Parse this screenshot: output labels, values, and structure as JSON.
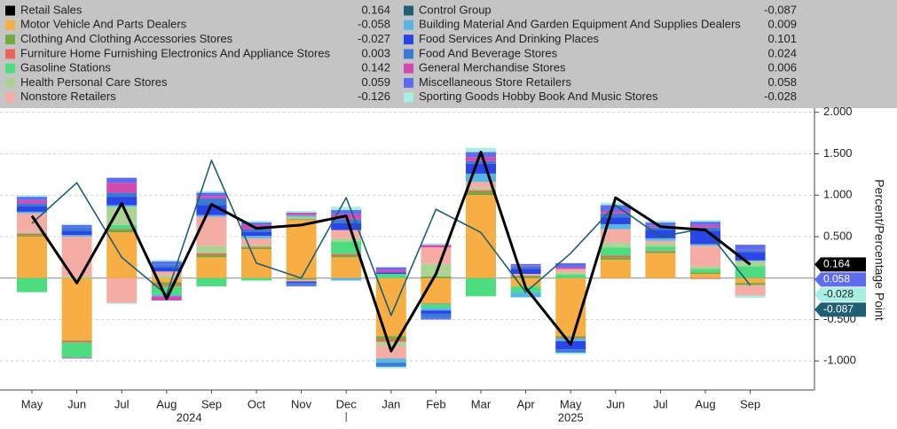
{
  "chart_data": {
    "type": "bar",
    "stacked": true,
    "y_axis_label": "Percent/Percentage Point",
    "categories": [
      "May",
      "Jun",
      "Jul",
      "Aug",
      "Sep",
      "Oct",
      "Nov",
      "Dec",
      "Jan",
      "Feb",
      "Mar",
      "Apr",
      "May",
      "Jun",
      "Jul",
      "Aug",
      "Sep"
    ],
    "x_groups": [
      {
        "label": "2024",
        "size": 8
      },
      {
        "label": "2025",
        "size": 9
      }
    ],
    "ylim": [
      -1.35,
      2.05
    ],
    "yticks": [
      {
        "value": -1,
        "label": "-1.000"
      },
      {
        "value": -0.5,
        "label": "-0.500"
      },
      {
        "value": 0.5,
        "label": "0.500"
      },
      {
        "value": 1,
        "label": "1.000"
      },
      {
        "value": 1.5,
        "label": "1.500"
      },
      {
        "value": 2,
        "label": "2.000"
      }
    ],
    "grid": true,
    "series": [
      {
        "name": "Retail Sales",
        "type": "line",
        "color": "#000000",
        "values": [
          0.75,
          -0.06,
          0.9,
          -0.25,
          0.89,
          0.6,
          0.64,
          0.75,
          -0.88,
          0.05,
          1.52,
          -0.12,
          -0.8,
          0.97,
          0.62,
          0.58,
          0.164
        ]
      },
      {
        "name": "Motor Vehicle And Parts Dealers",
        "type": "bar",
        "color": "#f7ae45",
        "values": [
          0.5,
          -0.75,
          0.55,
          -0.05,
          0.25,
          0.35,
          0.7,
          0.25,
          -0.7,
          -0.3,
          1.0,
          -0.1,
          -0.7,
          0.22,
          0.3,
          0.05,
          -0.058
        ]
      },
      {
        "name": "Clothing And Clothing Accessories Stores",
        "type": "bar",
        "color": "#76a83e",
        "values": [
          0.02,
          -0.01,
          0.03,
          -0.03,
          0.03,
          0.02,
          -0.02,
          0.02,
          -0.04,
          0.02,
          0.04,
          0.02,
          -0.02,
          0.03,
          0.02,
          0.02,
          -0.027
        ]
      },
      {
        "name": "Furniture Home Furnishing Electronics And Appliance Stores",
        "type": "bar",
        "color": "#e8665a",
        "values": [
          0.02,
          -0.02,
          0.01,
          -0.02,
          0.02,
          0.01,
          0.01,
          0.02,
          -0.03,
          -0.01,
          0.02,
          0.01,
          -0.01,
          0.02,
          0.01,
          -0.01,
          0.003
        ]
      },
      {
        "name": "Gasoline Stations",
        "type": "bar",
        "color": "#4edc80",
        "values": [
          -0.17,
          -0.18,
          0.05,
          -0.1,
          -0.1,
          -0.03,
          0.01,
          0.15,
          0.05,
          -0.05,
          -0.22,
          -0.07,
          0.04,
          0.1,
          0.05,
          0.04,
          0.142
        ]
      },
      {
        "name": "Health Personal Care Stores",
        "type": "bar",
        "color": "#acd394",
        "values": [
          0.02,
          0.02,
          0.22,
          0.03,
          0.09,
          0.02,
          0.02,
          0.04,
          -0.05,
          0.15,
          0.03,
          0.01,
          0.03,
          0.06,
          0.04,
          0.03,
          0.059
        ]
      },
      {
        "name": "Nonstore Retailers",
        "type": "bar",
        "color": "#f5aca4",
        "values": [
          0.22,
          0.48,
          -0.3,
          0.05,
          0.35,
          0.08,
          -0.02,
          0.1,
          -0.15,
          0.2,
          0.07,
          0.01,
          0.04,
          0.16,
          0.03,
          0.25,
          -0.126
        ]
      },
      {
        "name": "Control Group",
        "type": "line",
        "color": "#1e5f74",
        "values": [
          0.66,
          1.15,
          0.25,
          -0.2,
          1.42,
          0.18,
          0.0,
          0.97,
          -0.45,
          0.83,
          0.55,
          -0.17,
          0.3,
          0.88,
          0.5,
          0.6,
          -0.087
        ]
      },
      {
        "name": "Building Material And Garden Equipment And Supplies Dealers",
        "type": "bar",
        "color": "#58b6e2",
        "values": [
          0.02,
          0.02,
          0.02,
          -0.02,
          0.02,
          0.03,
          0.02,
          -0.03,
          -0.05,
          -0.03,
          0.1,
          -0.06,
          -0.03,
          0.06,
          0.03,
          0.02,
          0.009
        ]
      },
      {
        "name": "Food Services And Drinking Places",
        "type": "bar",
        "color": "#2a46e6",
        "values": [
          0.07,
          0.05,
          0.1,
          0.05,
          0.12,
          0.05,
          -0.02,
          0.08,
          0.02,
          -0.04,
          0.12,
          0.06,
          -0.1,
          0.08,
          0.1,
          0.16,
          0.101
        ]
      },
      {
        "name": "Food And Beverage Stores",
        "type": "bar",
        "color": "#3c7bd4",
        "values": [
          0.03,
          0.04,
          0.05,
          0.03,
          0.08,
          0.03,
          -0.02,
          0.05,
          -0.05,
          -0.05,
          0.03,
          0.03,
          -0.04,
          0.05,
          0.03,
          0.04,
          0.024
        ]
      },
      {
        "name": "General Merchandise Stores",
        "type": "bar",
        "color": "#d24bb0",
        "values": [
          0.04,
          -0.01,
          0.12,
          -0.05,
          0.03,
          0.05,
          0.03,
          0.06,
          0.03,
          0.03,
          0.05,
          0.01,
          0.02,
          0.03,
          0.02,
          0.03,
          0.006
        ]
      },
      {
        "name": "Miscellaneous Store Retailers",
        "type": "bar",
        "color": "#5d6ded",
        "values": [
          0.04,
          0.03,
          0.06,
          0.04,
          0.04,
          0.03,
          -0.02,
          0.05,
          0.03,
          -0.02,
          0.06,
          0.02,
          0.05,
          0.07,
          0.04,
          0.04,
          0.058
        ]
      },
      {
        "name": "Sporting Goods Hobby Book And Music Stores",
        "type": "bar",
        "color": "#a8efe1",
        "values": [
          0.02,
          0.01,
          -0.01,
          0.02,
          0.02,
          0.02,
          0.02,
          0.04,
          -0.02,
          0.02,
          0.05,
          -0.01,
          -0.02,
          0.03,
          0.02,
          0.02,
          -0.028
        ]
      }
    ]
  }
}
